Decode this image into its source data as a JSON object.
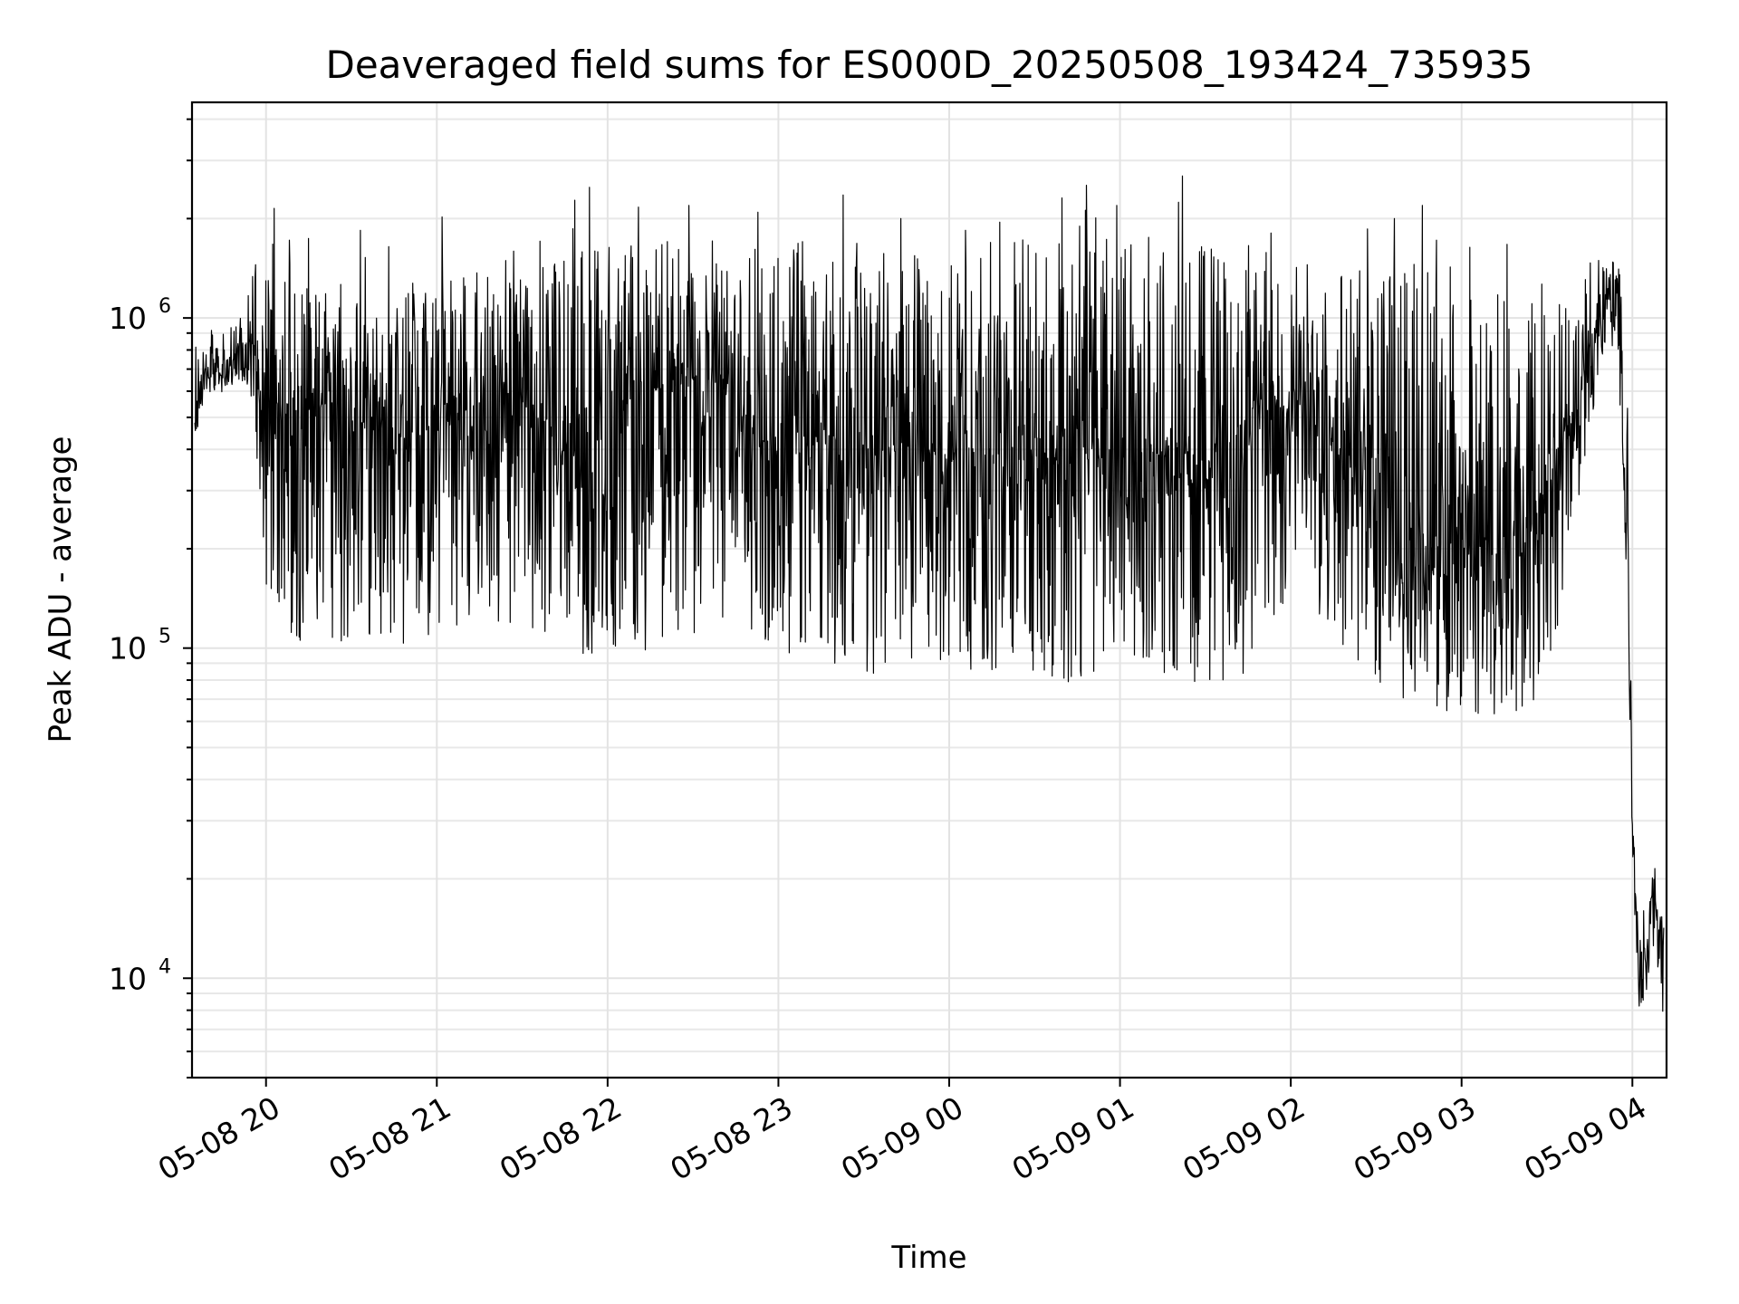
{
  "chart_data": {
    "type": "line",
    "title": "Deaveraged field sums for ES000D_20250508_193424_735935",
    "xlabel": "Time",
    "ylabel": "Peak ADU - average",
    "yscale": "log",
    "ylim": [
      5000,
      4500000
    ],
    "xlim": [
      "2025-05-08 19:34",
      "2025-05-09 04:12"
    ],
    "grid": "on (major and minor)",
    "x_tick_labels": [
      "05-08 20",
      "05-08 21",
      "05-08 22",
      "05-08 23",
      "05-09 00",
      "05-09 01",
      "05-09 02",
      "05-09 03",
      "05-09 04"
    ],
    "y_tick_labels": [
      {
        "base": "10",
        "exp": "4"
      },
      {
        "base": "10",
        "exp": "5"
      },
      {
        "base": "10",
        "exp": "6"
      }
    ],
    "series": [
      {
        "color": "#000000",
        "x": [
          "2025-05-08 19:35",
          "2025-05-08 19:40",
          "2025-05-08 19:45",
          "2025-05-08 19:50",
          "2025-05-08 19:55",
          "2025-05-08 20:00",
          "2025-05-08 20:10",
          "2025-05-08 20:20",
          "2025-05-08 20:30",
          "2025-05-08 20:40",
          "2025-05-08 20:50",
          "2025-05-08 21:00",
          "2025-05-08 21:15",
          "2025-05-08 21:30",
          "2025-05-08 21:45",
          "2025-05-08 22:00",
          "2025-05-08 22:15",
          "2025-05-08 22:30",
          "2025-05-08 22:45",
          "2025-05-08 23:00",
          "2025-05-08 23:15",
          "2025-05-08 23:30",
          "2025-05-08 23:45",
          "2025-05-09 00:00",
          "2025-05-09 00:15",
          "2025-05-09 00:30",
          "2025-05-09 00:45",
          "2025-05-09 01:00",
          "2025-05-09 01:15",
          "2025-05-09 01:30",
          "2025-05-09 01:45",
          "2025-05-09 02:00",
          "2025-05-09 02:15",
          "2025-05-09 02:30",
          "2025-05-09 02:45",
          "2025-05-09 03:00",
          "2025-05-09 03:15",
          "2025-05-09 03:30",
          "2025-05-09 03:40",
          "2025-05-09 03:50",
          "2025-05-09 03:55",
          "2025-05-09 03:58",
          "2025-05-09 04:00",
          "2025-05-09 04:02",
          "2025-05-09 04:05",
          "2025-05-09 04:08",
          "2025-05-09 04:11"
        ],
        "y": [
          500000,
          750000,
          650000,
          800000,
          850000,
          400000,
          500000,
          550000,
          450000,
          500000,
          420000,
          480000,
          550000,
          600000,
          400000,
          550000,
          600000,
          650000,
          500000,
          380000,
          420000,
          380000,
          400000,
          380000,
          400000,
          360000,
          380000,
          400000,
          380000,
          360000,
          420000,
          550000,
          420000,
          300000,
          220000,
          200000,
          180000,
          300000,
          500000,
          1200000,
          1000000,
          200000,
          30000,
          11000,
          13000,
          17000,
          12000
        ],
        "low_envelope": [
          420000,
          600000,
          560000,
          650000,
          500000,
          150000,
          90000,
          100000,
          95000,
          100000,
          100000,
          110000,
          110000,
          120000,
          100000,
          90000,
          100000,
          110000,
          130000,
          90000,
          90000,
          85000,
          80000,
          80000,
          80000,
          80000,
          78000,
          80000,
          80000,
          78000,
          80000,
          140000,
          110000,
          75000,
          68000,
          62000,
          60000,
          70000,
          250000,
          800000,
          800000,
          150000,
          25000,
          8000,
          9000,
          13000,
          7000
        ],
        "high_envelope": [
          900000,
          950000,
          900000,
          1000000,
          1500000,
          2000000,
          1400000,
          1400000,
          1200000,
          1200000,
          1300000,
          1300000,
          1500000,
          1500000,
          1600000,
          1700000,
          1800000,
          1600000,
          1500000,
          1800000,
          1800000,
          1700000,
          1600000,
          1600000,
          1700000,
          1800000,
          1700000,
          1800000,
          1800000,
          1700000,
          1700000,
          1500000,
          1400000,
          1500000,
          1500000,
          1500000,
          1200000,
          1100000,
          1200000,
          1600000,
          1500000,
          1000000,
          40000,
          15000,
          18000,
          22000,
          18000
        ]
      }
    ]
  }
}
